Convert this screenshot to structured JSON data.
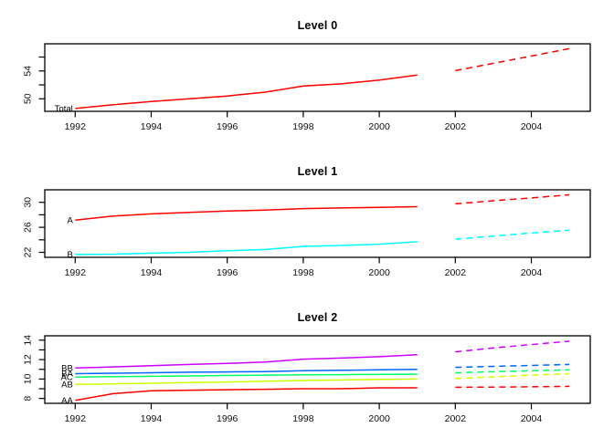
{
  "figure": {
    "background": "#ffffff",
    "axis_color": "#000000",
    "text_color": "#111111"
  },
  "chart_data": [
    {
      "type": "line",
      "title": "Level 0",
      "xlim": [
        1991.2,
        2005.55
      ],
      "xticks": [
        1992,
        1994,
        1996,
        1998,
        2000,
        2002,
        2004
      ],
      "x_history": [
        1992,
        1993,
        1994,
        1995,
        1996,
        1997,
        1998,
        1999,
        2000,
        2001
      ],
      "x_forecast": [
        2002,
        2003,
        2004,
        2005
      ],
      "ylim": [
        48.2,
        57.9
      ],
      "yticks": [
        {
          "v": 50,
          "label": "50"
        },
        {
          "v": 52,
          "label": ""
        },
        {
          "v": 54,
          "label": "54"
        },
        {
          "v": 56,
          "label": ""
        }
      ],
      "grid": false,
      "forecast_style": "dashed",
      "series": [
        {
          "name": "Total",
          "color": "#FF0000",
          "history": [
            48.6,
            49.15,
            49.6,
            50.0,
            50.4,
            50.95,
            51.85,
            52.15,
            52.7,
            53.4
          ],
          "forecast": [
            54.05,
            55.1,
            56.15,
            57.2
          ]
        }
      ]
    },
    {
      "type": "line",
      "title": "Level 1",
      "xlim": [
        1991.2,
        2005.55
      ],
      "xticks": [
        1992,
        1994,
        1996,
        1998,
        2000,
        2002,
        2004
      ],
      "x_history": [
        1992,
        1993,
        1994,
        1995,
        1996,
        1997,
        1998,
        1999,
        2000,
        2001
      ],
      "x_forecast": [
        2002,
        2003,
        2004,
        2005
      ],
      "ylim": [
        21.2,
        32.0
      ],
      "yticks": [
        {
          "v": 22,
          "label": "22"
        },
        {
          "v": 24,
          "label": ""
        },
        {
          "v": 26,
          "label": "26"
        },
        {
          "v": 28,
          "label": ""
        },
        {
          "v": 30,
          "label": "30"
        }
      ],
      "grid": false,
      "forecast_style": "dashed",
      "series": [
        {
          "name": "A",
          "color": "#FF0000",
          "history": [
            27.15,
            27.8,
            28.15,
            28.4,
            28.6,
            28.75,
            29.0,
            29.1,
            29.2,
            29.3
          ],
          "forecast": [
            29.75,
            30.25,
            30.7,
            31.2
          ]
        },
        {
          "name": "B",
          "color": "#00FFFF",
          "history": [
            21.65,
            21.7,
            21.85,
            22.0,
            22.25,
            22.45,
            22.95,
            23.1,
            23.3,
            23.7
          ],
          "forecast": [
            24.1,
            24.6,
            25.1,
            25.55
          ]
        }
      ]
    },
    {
      "type": "line",
      "title": "Level 2",
      "xlim": [
        1991.2,
        2005.55
      ],
      "xticks": [
        1992,
        1994,
        1996,
        1998,
        2000,
        2002,
        2004
      ],
      "x_history": [
        1992,
        1993,
        1994,
        1995,
        1996,
        1997,
        1998,
        1999,
        2000,
        2001
      ],
      "x_forecast": [
        2002,
        2003,
        2004,
        2005
      ],
      "ylim": [
        7.5,
        14.45
      ],
      "yticks": [
        {
          "v": 8,
          "label": "8"
        },
        {
          "v": 9,
          "label": ""
        },
        {
          "v": 10,
          "label": "10"
        },
        {
          "v": 11,
          "label": ""
        },
        {
          "v": 12,
          "label": "12"
        },
        {
          "v": 13,
          "label": ""
        },
        {
          "v": 14,
          "label": "14"
        }
      ],
      "grid": false,
      "forecast_style": "dashed",
      "series": [
        {
          "name": "AA",
          "color": "#FF0000",
          "history": [
            7.8,
            8.5,
            8.8,
            8.85,
            8.9,
            8.95,
            9.0,
            9.0,
            9.1,
            9.1
          ],
          "forecast": [
            9.15,
            9.17,
            9.2,
            9.25
          ]
        },
        {
          "name": "AB",
          "color": "#CCFF00",
          "history": [
            9.45,
            9.5,
            9.57,
            9.64,
            9.7,
            9.77,
            9.85,
            9.9,
            9.97,
            10.0
          ],
          "forecast": [
            10.05,
            10.22,
            10.4,
            10.55
          ]
        },
        {
          "name": "AC",
          "color": "#00FF66",
          "history": [
            10.2,
            10.24,
            10.28,
            10.32,
            10.36,
            10.4,
            10.43,
            10.45,
            10.48,
            10.5
          ],
          "forecast": [
            10.65,
            10.75,
            10.85,
            10.95
          ]
        },
        {
          "name": "BA",
          "color": "#0066FF",
          "history": [
            10.55,
            10.6,
            10.65,
            10.7,
            10.73,
            10.77,
            10.85,
            10.9,
            10.95,
            11.0
          ],
          "forecast": [
            11.2,
            11.3,
            11.4,
            11.5
          ]
        },
        {
          "name": "BB",
          "color": "#CC00FF",
          "history": [
            11.13,
            11.25,
            11.37,
            11.5,
            11.6,
            11.75,
            12.05,
            12.16,
            12.3,
            12.5
          ],
          "forecast": [
            12.8,
            13.2,
            13.55,
            13.9
          ]
        }
      ]
    }
  ]
}
